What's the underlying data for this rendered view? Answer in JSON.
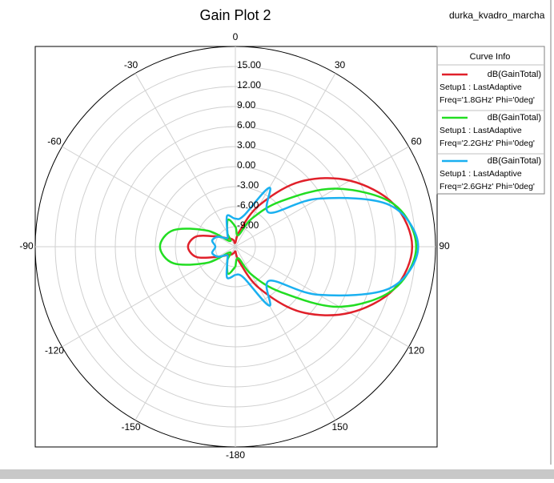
{
  "chart_data": {
    "type": "polar",
    "title": "Gain Plot 2",
    "project": "durka_kvadro_marcha",
    "legend_title": "Curve Info",
    "legend": "upper right",
    "rlim": [
      -12,
      18
    ],
    "rticks": [
      {
        "value": -9,
        "label": "-9.00"
      },
      {
        "value": -6,
        "label": "-6.00"
      },
      {
        "value": -3,
        "label": "-3.00"
      },
      {
        "value": 0,
        "label": "0.00"
      },
      {
        "value": 3,
        "label": "3.00"
      },
      {
        "value": 6,
        "label": "6.00"
      },
      {
        "value": 9,
        "label": "9.00"
      },
      {
        "value": 12,
        "label": "12.00"
      },
      {
        "value": 15,
        "label": "15.00"
      }
    ],
    "thetaticks": [
      0,
      30,
      60,
      90,
      120,
      150,
      -180,
      -150,
      -120,
      -90,
      -60,
      -30
    ],
    "grid": true,
    "theta": [
      -180,
      -165,
      -150,
      -135,
      -120,
      -105,
      -90,
      -75,
      -60,
      -45,
      -30,
      -15,
      0,
      15,
      30,
      45,
      60,
      75,
      90,
      105,
      120,
      135,
      150,
      165,
      180
    ],
    "series": [
      {
        "name": "dB(GainTotal)",
        "details": [
          "Setup1 : LastAdaptive",
          "Freq='1.8GHz' Phi='0deg'"
        ],
        "color": "#e0202a",
        "values": [
          -11.4,
          -11.0,
          -10.6,
          -10.2,
          -9.0,
          -6.0,
          -4.9,
          -6.0,
          -9.0,
          -10.2,
          -10.6,
          -11.0,
          -11.4,
          -9.6,
          -4.8,
          1.8,
          7.8,
          12.6,
          14.5,
          12.6,
          7.8,
          1.8,
          -4.8,
          -9.6,
          -11.4
        ]
      },
      {
        "name": "dB(GainTotal)",
        "details": [
          "Setup1 : LastAdaptive",
          "Freq='2.2GHz' Phi='0deg'"
        ],
        "color": "#22dd22",
        "values": [
          -9.0,
          -7.8,
          -9.6,
          -10.8,
          -7.2,
          -2.4,
          -0.7,
          -2.4,
          -7.2,
          -10.8,
          -9.6,
          -7.8,
          -9.0,
          -10.2,
          -7.2,
          -2.4,
          5.4,
          12.6,
          15.1,
          12.6,
          6.0,
          -2.4,
          -7.2,
          -10.2,
          -9.0
        ]
      },
      {
        "name": "dB(GainTotal)",
        "details": [
          "Setup1 : LastAdaptive",
          "Freq='2.6GHz' Phi='0deg'"
        ],
        "color": "#1ab0f0",
        "values": [
          -7.8,
          -7.2,
          -9.6,
          -10.2,
          -9.0,
          -8.4,
          -9.0,
          -8.4,
          -9.0,
          -10.2,
          -9.6,
          -7.2,
          -7.8,
          -7.2,
          -1.8,
          -4.8,
          2.4,
          12.0,
          15.4,
          12.0,
          2.4,
          -4.8,
          -1.8,
          -7.2,
          -7.8
        ]
      }
    ]
  }
}
